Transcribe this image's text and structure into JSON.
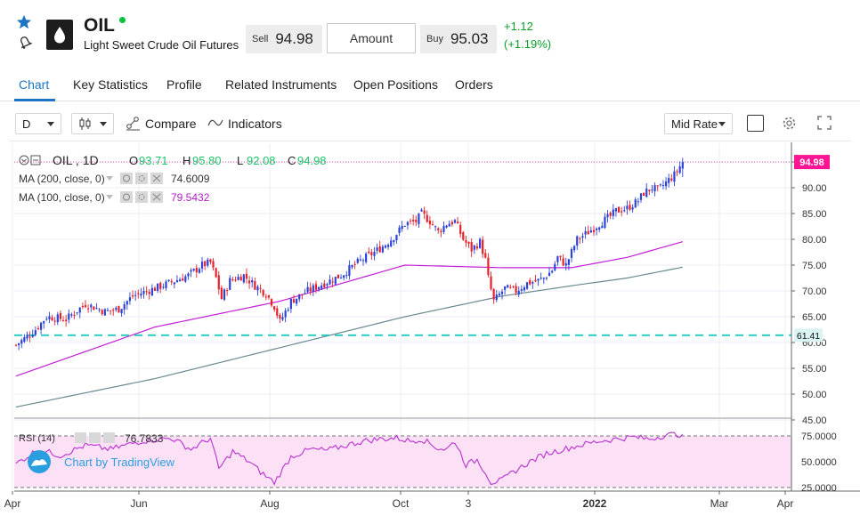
{
  "header": {
    "symbol": "OIL",
    "name": "Light Sweet Crude Oil Futures",
    "sell_label": "Sell",
    "sell_price": "94.98",
    "amount_label": "Amount",
    "buy_label": "Buy",
    "buy_price": "95.03",
    "change_abs": "+1.12",
    "change_pct": "(+1.19%)"
  },
  "tabs": [
    {
      "label": "Chart",
      "active": true
    },
    {
      "label": "Key Statistics"
    },
    {
      "label": "Profile"
    },
    {
      "label": "Related Instruments"
    },
    {
      "label": "Open Positions"
    },
    {
      "label": "Orders"
    }
  ],
  "toolbar": {
    "interval": "D",
    "compare_label": "Compare",
    "indicators_label": "Indicators",
    "rate_mode": "Mid Rate"
  },
  "legend": {
    "symbol": "OIL , 1D",
    "o_label": "O",
    "o_val": "93.71",
    "h_label": "H",
    "h_val": "95.80",
    "l_label": "L",
    "l_val": "92.08",
    "c_label": "C",
    "c_val": "94.98",
    "ma200_label": "MA (200, close, 0)",
    "ma200_val": "74.6009",
    "ma100_label": "MA (100, close, 0)",
    "ma100_val": "79.5432",
    "rsi_label": "RSI (14)",
    "rsi_val": "76.7833",
    "watermark": "Chart by TradingView"
  },
  "chart_data": {
    "type": "candlestick",
    "price_axis": [
      "95.00",
      "90.00",
      "85.00",
      "80.00",
      "75.00",
      "70.00",
      "65.00",
      "60.00",
      "55.00",
      "50.00",
      "45.00"
    ],
    "rsi_axis": [
      "75.0000",
      "50.0000",
      "25.0000"
    ],
    "time_axis": [
      "Apr",
      "Jun",
      "Aug",
      "Oct",
      "3",
      "2022",
      "Mar",
      "Apr"
    ],
    "last_price": "94.98",
    "hline_price": "61.41",
    "ylim": [
      44,
      98
    ],
    "rsi_ylim": [
      22,
      80
    ],
    "last_candle": {
      "open": 93.71,
      "high": 95.8,
      "low": 92.08,
      "close": 94.98
    },
    "ma200_last": 74.6009,
    "ma100_last": 79.5432,
    "rsi_last": 76.7833,
    "colors": {
      "up": "#2b43d9",
      "down": "#e8202a",
      "ma100": "#c21fd6",
      "ma200": "#6b8a93",
      "hline": "#1fc8c0",
      "last": "#ff1493",
      "rsi": "#b832cf",
      "rsi_band": "#fbe0f6"
    },
    "path_points": [
      [
        0,
        59.5
      ],
      [
        7,
        62.5
      ],
      [
        11,
        65
      ],
      [
        18,
        64.5
      ],
      [
        25,
        67.5
      ],
      [
        32,
        66
      ],
      [
        37,
        66.5
      ],
      [
        42,
        69
      ],
      [
        50,
        70.5
      ],
      [
        55,
        71.5
      ],
      [
        62,
        73
      ],
      [
        67,
        75
      ],
      [
        70,
        75.5
      ],
      [
        72,
        72.5
      ],
      [
        74,
        68.5
      ],
      [
        77,
        72
      ],
      [
        82,
        73
      ],
      [
        86,
        71
      ],
      [
        90,
        69.5
      ],
      [
        93,
        67
      ],
      [
        95,
        64
      ],
      [
        99,
        68
      ],
      [
        105,
        70
      ],
      [
        111,
        71.5
      ],
      [
        117,
        73
      ],
      [
        123,
        75.5
      ],
      [
        129,
        77.5
      ],
      [
        133,
        79
      ],
      [
        136,
        80.5
      ],
      [
        140,
        83
      ],
      [
        144,
        83.5
      ],
      [
        146,
        85
      ],
      [
        149,
        83.5
      ],
      [
        152,
        81.5
      ],
      [
        155,
        83
      ],
      [
        158,
        83.5
      ],
      [
        161,
        80
      ],
      [
        164,
        78
      ],
      [
        167,
        79.5
      ],
      [
        169,
        76
      ],
      [
        170,
        72.5
      ],
      [
        172,
        68
      ],
      [
        176,
        70.5
      ],
      [
        180,
        70
      ],
      [
        184,
        71.5
      ],
      [
        188,
        72
      ],
      [
        190,
        72.5
      ],
      [
        193,
        74
      ],
      [
        195,
        76.5
      ],
      [
        198,
        75
      ],
      [
        202,
        80
      ],
      [
        205,
        81
      ],
      [
        210,
        83
      ],
      [
        214,
        84.5
      ],
      [
        216,
        85.5
      ],
      [
        220,
        86
      ],
      [
        224,
        87.5
      ],
      [
        226,
        89
      ],
      [
        229,
        90
      ],
      [
        231,
        89.5
      ],
      [
        234,
        91
      ],
      [
        237,
        92.5
      ],
      [
        240,
        94.98
      ]
    ],
    "ma100_points": [
      [
        0,
        53.5
      ],
      [
        50,
        63
      ],
      [
        95,
        68
      ],
      [
        140,
        75
      ],
      [
        175,
        74.5
      ],
      [
        200,
        74.5
      ],
      [
        220,
        76.5
      ],
      [
        240,
        79.54
      ]
    ],
    "ma200_points": [
      [
        0,
        47.5
      ],
      [
        50,
        53
      ],
      [
        95,
        59
      ],
      [
        140,
        65
      ],
      [
        175,
        69
      ],
      [
        200,
        71
      ],
      [
        220,
        72.5
      ],
      [
        240,
        74.6
      ]
    ],
    "rsi_points": [
      [
        0,
        48
      ],
      [
        8,
        62
      ],
      [
        16,
        56
      ],
      [
        25,
        66
      ],
      [
        34,
        62
      ],
      [
        45,
        70
      ],
      [
        56,
        73
      ],
      [
        63,
        62
      ],
      [
        70,
        73
      ],
      [
        73,
        43
      ],
      [
        78,
        60
      ],
      [
        84,
        50
      ],
      [
        88,
        40
      ],
      [
        93,
        30
      ],
      [
        99,
        55
      ],
      [
        106,
        62
      ],
      [
        112,
        61
      ],
      [
        119,
        66
      ],
      [
        125,
        70
      ],
      [
        131,
        72
      ],
      [
        137,
        73
      ],
      [
        142,
        70
      ],
      [
        146,
        72
      ],
      [
        152,
        63
      ],
      [
        155,
        62
      ],
      [
        158,
        70
      ],
      [
        162,
        47
      ],
      [
        166,
        52
      ],
      [
        169,
        40
      ],
      [
        171,
        30
      ],
      [
        175,
        32
      ],
      [
        179,
        40
      ],
      [
        185,
        50
      ],
      [
        191,
        58
      ],
      [
        197,
        62
      ],
      [
        203,
        66
      ],
      [
        210,
        70
      ],
      [
        216,
        72
      ],
      [
        222,
        74
      ],
      [
        228,
        72
      ],
      [
        234,
        76
      ],
      [
        240,
        76.78
      ]
    ]
  }
}
